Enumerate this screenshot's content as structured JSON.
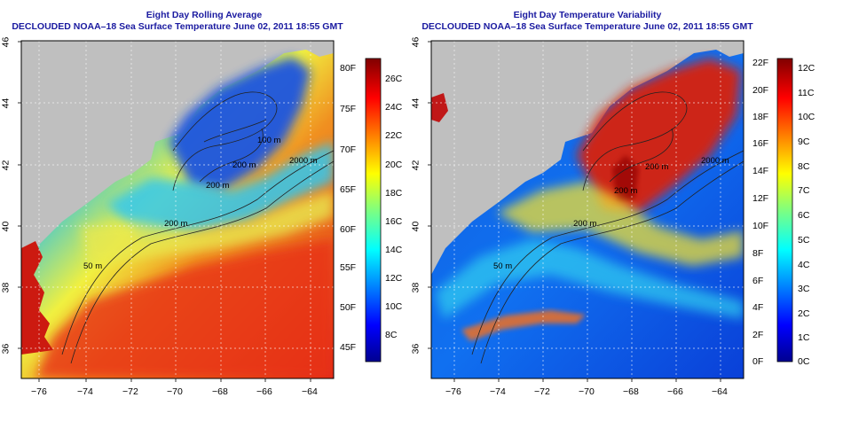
{
  "panels": [
    {
      "title": "Eight Day Rolling Average",
      "subtitle": "DECLOUDED NOAA–18 Sea Surface Temperature June 02, 2011 18:55 GMT",
      "colorbar": {
        "left_labels": [
          "26C",
          "24C",
          "22C",
          "20C",
          "18C",
          "16C",
          "14C",
          "12C",
          "10C",
          "8C"
        ],
        "right_labels": [
          "80F",
          "75F",
          "70F",
          "65F",
          "60F",
          "55F",
          "50F",
          "45F"
        ]
      },
      "contour_labels": [
        "2000 m",
        "200 m",
        "200 m",
        "200 m",
        "50 m",
        "100 m"
      ]
    },
    {
      "title": "Eight Day Temperature Variability",
      "subtitle": "DECLOUDED NOAA–18 Sea Surface Temperature June 02, 2011 18:55 GMT",
      "colorbar": {
        "left_labels": [
          "22F",
          "20F",
          "18F",
          "16F",
          "14F",
          "12F",
          "10F",
          "8F",
          "6F",
          "4F",
          "2F",
          "0F"
        ],
        "right_labels": [
          "12C",
          "11C",
          "10C",
          "9C",
          "8C",
          "7C",
          "6C",
          "5C",
          "4C",
          "3C",
          "2C",
          "1C",
          "0C"
        ]
      },
      "contour_labels": [
        "2000 m",
        "200 m",
        "200 m",
        "200 m",
        "50 m"
      ]
    }
  ],
  "axes": {
    "lon_labels": [
      "−76",
      "−74",
      "−72",
      "−70",
      "−68",
      "−66",
      "−64"
    ],
    "lat_labels": [
      "36",
      "38",
      "40",
      "42",
      "44",
      "46"
    ]
  },
  "colors": {
    "land": "#bfbfbf",
    "title": "#1a1aa0",
    "contour": "#222222"
  }
}
